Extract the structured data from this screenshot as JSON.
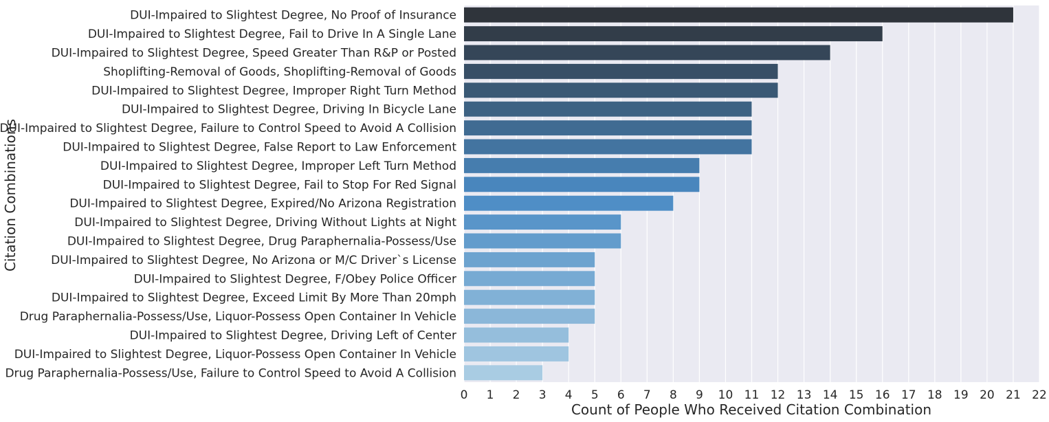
{
  "chart_data": {
    "type": "bar",
    "orientation": "horizontal",
    "title": "",
    "xlabel": "Count of People Who Received Citation Combination",
    "ylabel": "Citation Combinations",
    "xlim": [
      0,
      22
    ],
    "xticks": [
      0,
      1,
      2,
      3,
      4,
      5,
      6,
      7,
      8,
      9,
      10,
      11,
      12,
      13,
      14,
      15,
      16,
      17,
      18,
      19,
      20,
      21,
      22
    ],
    "grid": true,
    "legend": "none",
    "categories": [
      "DUI-Impaired to Slightest Degree, No Proof of Insurance",
      "DUI-Impaired to Slightest Degree, Fail to Drive In A Single Lane",
      "DUI-Impaired to Slightest Degree, Speed Greater Than R&P or Posted",
      "Shoplifting-Removal of Goods, Shoplifting-Removal of Goods",
      "DUI-Impaired to Slightest Degree, Improper Right Turn Method",
      "DUI-Impaired to Slightest Degree, Driving In Bicycle Lane",
      "DUI-Impaired to Slightest Degree, Failure to Control Speed to Avoid A Collision",
      "DUI-Impaired to Slightest Degree, False Report to Law Enforcement",
      "DUI-Impaired to Slightest Degree, Improper Left Turn Method",
      "DUI-Impaired to Slightest Degree, Fail to Stop For Red Signal",
      "DUI-Impaired to Slightest Degree, Expired/No Arizona Registration",
      "DUI-Impaired to Slightest Degree, Driving Without Lights at Night",
      "DUI-Impaired to Slightest Degree, Drug Paraphernalia-Possess/Use",
      "DUI-Impaired to Slightest Degree, No Arizona or M/C Driver`s License",
      "DUI-Impaired to Slightest Degree, F/Obey Police Officer",
      "DUI-Impaired to Slightest Degree, Exceed Limit By More Than 20mph",
      "Drug Paraphernalia-Possess/Use, Liquor-Possess Open Container In Vehicle",
      "DUI-Impaired to Slightest Degree, Driving Left of Center",
      "DUI-Impaired to Slightest Degree, Liquor-Possess Open Container In Vehicle",
      "Drug Paraphernalia-Possess/Use, Failure to Control Speed to Avoid A Collision"
    ],
    "values": [
      21,
      16,
      14,
      12,
      12,
      11,
      11,
      11,
      9,
      9,
      8,
      6,
      6,
      5,
      5,
      5,
      5,
      4,
      4,
      3
    ],
    "colors": {
      "background": "#eaeaf2",
      "grid": "#ffffff",
      "palette_start": "#2f343b",
      "palette_mid": "#4a8bc4",
      "palette_end": "#a9cce3"
    }
  }
}
